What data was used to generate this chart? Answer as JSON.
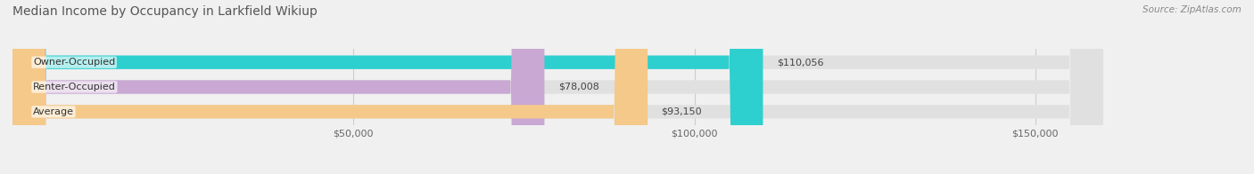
{
  "title": "Median Income by Occupancy in Larkfield Wikiup",
  "source": "Source: ZipAtlas.com",
  "categories": [
    "Owner-Occupied",
    "Renter-Occupied",
    "Average"
  ],
  "values": [
    110056,
    78008,
    93150
  ],
  "labels": [
    "$110,056",
    "$78,008",
    "$93,150"
  ],
  "bar_colors": [
    "#2ecfcf",
    "#c9a8d4",
    "#f5c98a"
  ],
  "background_color": "#f0f0f0",
  "bar_bg_color": "#e0e0e0",
  "xlim": [
    0,
    160000
  ],
  "xticks": [
    50000,
    100000,
    150000
  ],
  "xtick_labels": [
    "$50,000",
    "$100,000",
    "$150,000"
  ],
  "title_fontsize": 10,
  "label_fontsize": 8,
  "tick_fontsize": 8,
  "bar_height": 0.55
}
